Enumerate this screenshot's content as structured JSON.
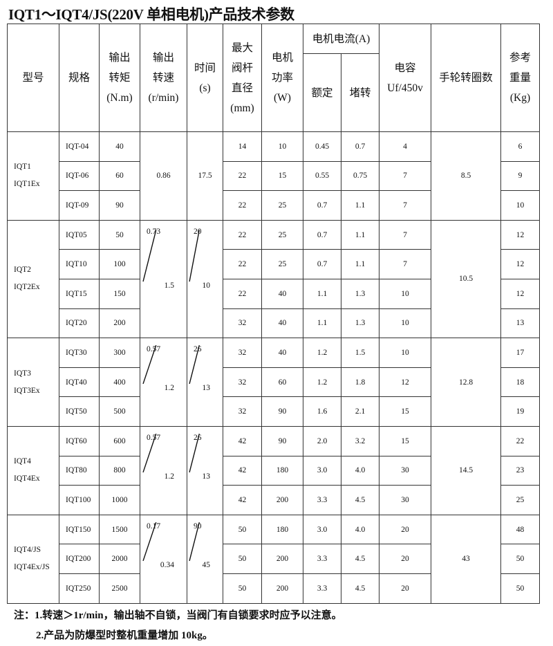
{
  "title": "IQT1～IQT4/JS(220V 单相电机)产品技术参数",
  "headers": {
    "model": [
      "型号"
    ],
    "spec": [
      "规格"
    ],
    "torque": [
      "输出",
      "转矩",
      "(N.m)"
    ],
    "speed": [
      "输出",
      "转速",
      "(r/min)"
    ],
    "time": [
      "时间",
      "(s)"
    ],
    "stem": [
      "最大",
      "阀杆",
      "直径",
      "(mm)"
    ],
    "power": [
      "电机",
      "功率",
      "(W)"
    ],
    "current": "电机电流(A)",
    "rated": "额定",
    "stall": "堵转",
    "capacitor": [
      "电容",
      "Uf/450v"
    ],
    "handwheel": [
      "手轮转圈数"
    ],
    "weight": [
      "参考",
      "重量",
      "(Kg)"
    ]
  },
  "groups": [
    {
      "model": [
        "IQT1",
        "IQT1Ex"
      ],
      "speed": [
        "0.86"
      ],
      "time": [
        "17.5"
      ],
      "handwheel": "8.5",
      "rows": [
        [
          "IQT-04",
          "40",
          "14",
          "10",
          "0.45",
          "0.7",
          "4",
          "6"
        ],
        [
          "IQT-06",
          "60",
          "22",
          "15",
          "0.55",
          "0.75",
          "7",
          "9"
        ],
        [
          "IQT-09",
          "90",
          "22",
          "25",
          "0.7",
          "1.1",
          "7",
          "10"
        ]
      ]
    },
    {
      "model": [
        "IQT2",
        "IQT2Ex"
      ],
      "speed": [
        "0.73",
        "1.5"
      ],
      "time": [
        "20",
        "10"
      ],
      "handwheel": "10.5",
      "rows": [
        [
          "IQT05",
          "50",
          "22",
          "25",
          "0.7",
          "1.1",
          "7",
          "12"
        ],
        [
          "IQT10",
          "100",
          "22",
          "25",
          "0.7",
          "1.1",
          "7",
          "12"
        ],
        [
          "IQT15",
          "150",
          "22",
          "40",
          "1.1",
          "1.3",
          "10",
          "12"
        ],
        [
          "IQT20",
          "200",
          "32",
          "40",
          "1.1",
          "1.3",
          "10",
          "13"
        ]
      ]
    },
    {
      "model": [
        "IQT3",
        "IQT3Ex"
      ],
      "speed": [
        "0.57",
        "1.2"
      ],
      "time": [
        "26",
        "13"
      ],
      "handwheel": "12.8",
      "rows": [
        [
          "IQT30",
          "300",
          "32",
          "40",
          "1.2",
          "1.5",
          "10",
          "17"
        ],
        [
          "IQT40",
          "400",
          "32",
          "60",
          "1.2",
          "1.8",
          "12",
          "18"
        ],
        [
          "IQT50",
          "500",
          "32",
          "90",
          "1.6",
          "2.1",
          "15",
          "19"
        ]
      ]
    },
    {
      "model": [
        "IQT4",
        "IQT4Ex"
      ],
      "speed": [
        "0.57",
        "1.2"
      ],
      "time": [
        "26",
        "13"
      ],
      "handwheel": "14.5",
      "rows": [
        [
          "IQT60",
          "600",
          "42",
          "90",
          "2.0",
          "3.2",
          "15",
          "22"
        ],
        [
          "IQT80",
          "800",
          "42",
          "180",
          "3.0",
          "4.0",
          "30",
          "23"
        ],
        [
          "IQT100",
          "1000",
          "42",
          "200",
          "3.3",
          "4.5",
          "30",
          "25"
        ]
      ]
    },
    {
      "model": [
        "IQT4/JS",
        "IQT4Ex/JS"
      ],
      "speed": [
        "0.17",
        "0.34"
      ],
      "time": [
        "90",
        "45"
      ],
      "handwheel": "43",
      "rows": [
        [
          "IQT150",
          "1500",
          "50",
          "180",
          "3.0",
          "4.0",
          "20",
          "48"
        ],
        [
          "IQT200",
          "2000",
          "50",
          "200",
          "3.3",
          "4.5",
          "20",
          "50"
        ],
        [
          "IQT250",
          "2500",
          "50",
          "200",
          "3.3",
          "4.5",
          "20",
          "50"
        ]
      ]
    }
  ],
  "notes": [
    "注：1.转速＞1r/min，输出轴不自锁，当阀门有自锁要求时应予以注意。",
    "2.产品为防爆型时整机重量增加 10kg。"
  ]
}
